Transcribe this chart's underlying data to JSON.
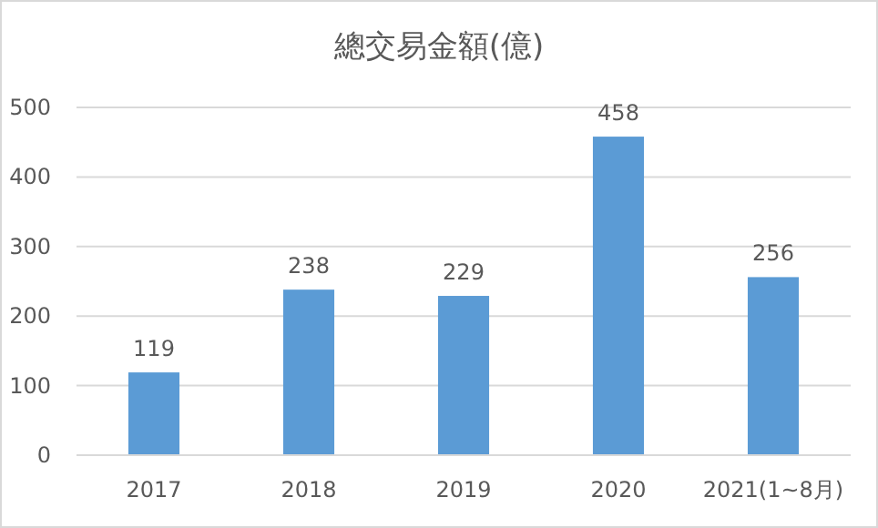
{
  "chart_data": {
    "type": "bar",
    "title": "總交易金額(億)",
    "categories": [
      "2017",
      "2018",
      "2019",
      "2020",
      "2021(1~8月)"
    ],
    "values": [
      119,
      238,
      229,
      458,
      256
    ],
    "color": "#5b9bd5",
    "ylim": [
      0,
      500
    ],
    "yticks": [
      0,
      100,
      200,
      300,
      400,
      500
    ],
    "grid": "y",
    "data_labels": true
  }
}
